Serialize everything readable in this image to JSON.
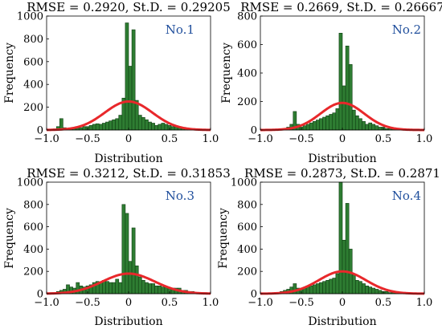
{
  "colors": {
    "bar_fill": "#2e7d32",
    "bar_edge": "#0f3d12",
    "curve": "#e8282b",
    "tag": "#1f4e9c",
    "axis": "#000000"
  },
  "chart_data": [
    {
      "type": "bar",
      "title": "RMSE = 0.2920, St.D. = 0.29205",
      "tag": "No.1",
      "xlabel": "Distribution",
      "ylabel": "Frequency",
      "xlim": [
        -1.0,
        1.0
      ],
      "ylim": [
        0,
        1000
      ],
      "xticks": [
        "−1.0",
        "−0.5",
        "0",
        "0.5",
        "1.0"
      ],
      "yticks": [
        "0",
        "200",
        "400",
        "600",
        "800",
        "1000"
      ],
      "bin_width": 0.04,
      "bin_centers": [
        -0.98,
        -0.94,
        -0.9,
        -0.86,
        -0.82,
        -0.78,
        -0.74,
        -0.7,
        -0.66,
        -0.62,
        -0.58,
        -0.54,
        -0.5,
        -0.46,
        -0.42,
        -0.38,
        -0.34,
        -0.3,
        -0.26,
        -0.22,
        -0.18,
        -0.14,
        -0.1,
        -0.06,
        -0.02,
        0.02,
        0.06,
        0.1,
        0.14,
        0.18,
        0.22,
        0.26,
        0.3,
        0.34,
        0.38,
        0.42,
        0.46,
        0.5,
        0.54,
        0.58,
        0.62,
        0.66,
        0.7,
        0.74,
        0.78,
        0.82,
        0.86,
        0.9,
        0.94,
        0.98
      ],
      "values": [
        0,
        0,
        10,
        30,
        100,
        20,
        5,
        5,
        10,
        15,
        20,
        30,
        30,
        40,
        50,
        55,
        50,
        60,
        70,
        80,
        90,
        100,
        130,
        280,
        940,
        560,
        880,
        260,
        130,
        110,
        90,
        70,
        60,
        40,
        50,
        60,
        50,
        40,
        30,
        30,
        20,
        20,
        10,
        10,
        5,
        5,
        0,
        0,
        0,
        0
      ],
      "curve_peak": 250,
      "curve_sd": 0.29205
    },
    {
      "type": "bar",
      "title": "RMSE = 0.2669, St.D. = 0.26667",
      "tag": "No.2",
      "xlabel": "Distribution",
      "ylabel": "Frequency",
      "xlim": [
        -1.0,
        1.0
      ],
      "ylim": [
        0,
        800
      ],
      "xticks": [
        "−1.0",
        "−0.5",
        "0",
        "0.5",
        "1.0"
      ],
      "yticks": [
        "0",
        "200",
        "400",
        "600",
        "800"
      ],
      "bin_width": 0.04,
      "bin_centers": [
        -0.98,
        -0.94,
        -0.9,
        -0.86,
        -0.82,
        -0.78,
        -0.74,
        -0.7,
        -0.66,
        -0.62,
        -0.58,
        -0.54,
        -0.5,
        -0.46,
        -0.42,
        -0.38,
        -0.34,
        -0.3,
        -0.26,
        -0.22,
        -0.18,
        -0.14,
        -0.1,
        -0.06,
        -0.02,
        0.02,
        0.06,
        0.1,
        0.14,
        0.18,
        0.22,
        0.26,
        0.3,
        0.34,
        0.38,
        0.42,
        0.46,
        0.5,
        0.54,
        0.58,
        0.62,
        0.66,
        0.7,
        0.74,
        0.78,
        0.82,
        0.86,
        0.9,
        0.94,
        0.98
      ],
      "values": [
        0,
        0,
        0,
        0,
        0,
        5,
        5,
        10,
        20,
        40,
        130,
        40,
        20,
        30,
        40,
        50,
        60,
        70,
        80,
        90,
        100,
        110,
        120,
        150,
        680,
        310,
        590,
        460,
        140,
        100,
        80,
        60,
        40,
        50,
        40,
        30,
        20,
        20,
        10,
        10,
        10,
        5,
        5,
        5,
        0,
        0,
        0,
        0,
        0,
        0
      ],
      "curve_peak": 190,
      "curve_sd": 0.26667
    },
    {
      "type": "bar",
      "title": "RMSE = 0.3212, St.D. = 0.31853",
      "tag": "No.3",
      "xlabel": "Distribution",
      "ylabel": "Frequency",
      "xlim": [
        -1.0,
        1.0
      ],
      "ylim": [
        0,
        1000
      ],
      "xticks": [
        "−1.0",
        "−0.5",
        "0",
        "0.5",
        "1.0"
      ],
      "yticks": [
        "0",
        "200",
        "400",
        "600",
        "800",
        "1000"
      ],
      "bin_width": 0.04,
      "bin_centers": [
        -0.98,
        -0.94,
        -0.9,
        -0.86,
        -0.82,
        -0.78,
        -0.74,
        -0.7,
        -0.66,
        -0.62,
        -0.58,
        -0.54,
        -0.5,
        -0.46,
        -0.42,
        -0.38,
        -0.34,
        -0.3,
        -0.26,
        -0.22,
        -0.18,
        -0.14,
        -0.1,
        -0.06,
        -0.02,
        0.02,
        0.06,
        0.1,
        0.14,
        0.18,
        0.22,
        0.26,
        0.3,
        0.34,
        0.38,
        0.42,
        0.46,
        0.5,
        0.54,
        0.58,
        0.62,
        0.66,
        0.7,
        0.74,
        0.78,
        0.82,
        0.86,
        0.9,
        0.94,
        0.98
      ],
      "values": [
        0,
        10,
        10,
        20,
        30,
        40,
        80,
        60,
        50,
        100,
        70,
        60,
        70,
        80,
        100,
        110,
        100,
        120,
        110,
        100,
        100,
        130,
        100,
        800,
        720,
        290,
        590,
        250,
        150,
        120,
        100,
        90,
        90,
        70,
        70,
        60,
        60,
        50,
        50,
        50,
        50,
        30,
        30,
        20,
        20,
        10,
        10,
        10,
        10,
        0
      ],
      "curve_peak": 180,
      "curve_sd": 0.31853
    },
    {
      "type": "bar",
      "title": "RMSE = 0.2873, St.D. = 0.2871",
      "tag": "No.4",
      "xlabel": "Distribution",
      "ylabel": "Frequency",
      "xlim": [
        -1.0,
        1.0
      ],
      "ylim": [
        0,
        1000
      ],
      "xticks": [
        "−1.0",
        "−0.5",
        "0",
        "0.5",
        "1.0"
      ],
      "yticks": [
        "0",
        "200",
        "400",
        "600",
        "800",
        "1000"
      ],
      "bin_width": 0.04,
      "bin_centers": [
        -0.98,
        -0.94,
        -0.9,
        -0.86,
        -0.82,
        -0.78,
        -0.74,
        -0.7,
        -0.66,
        -0.62,
        -0.58,
        -0.54,
        -0.5,
        -0.46,
        -0.42,
        -0.38,
        -0.34,
        -0.3,
        -0.26,
        -0.22,
        -0.18,
        -0.14,
        -0.1,
        -0.06,
        -0.02,
        0.02,
        0.06,
        0.1,
        0.14,
        0.18,
        0.22,
        0.26,
        0.3,
        0.34,
        0.38,
        0.42,
        0.46,
        0.5,
        0.54,
        0.58,
        0.62,
        0.66,
        0.7,
        0.74,
        0.78,
        0.82,
        0.86,
        0.9,
        0.94,
        0.98
      ],
      "values": [
        0,
        0,
        0,
        0,
        5,
        10,
        20,
        30,
        40,
        60,
        90,
        50,
        40,
        50,
        60,
        70,
        80,
        90,
        100,
        110,
        120,
        130,
        140,
        180,
        1000,
        480,
        810,
        400,
        170,
        120,
        110,
        90,
        70,
        60,
        50,
        40,
        30,
        20,
        20,
        10,
        10,
        10,
        5,
        5,
        5,
        0,
        0,
        0,
        0,
        0
      ],
      "curve_peak": 200,
      "curve_sd": 0.2871
    }
  ]
}
